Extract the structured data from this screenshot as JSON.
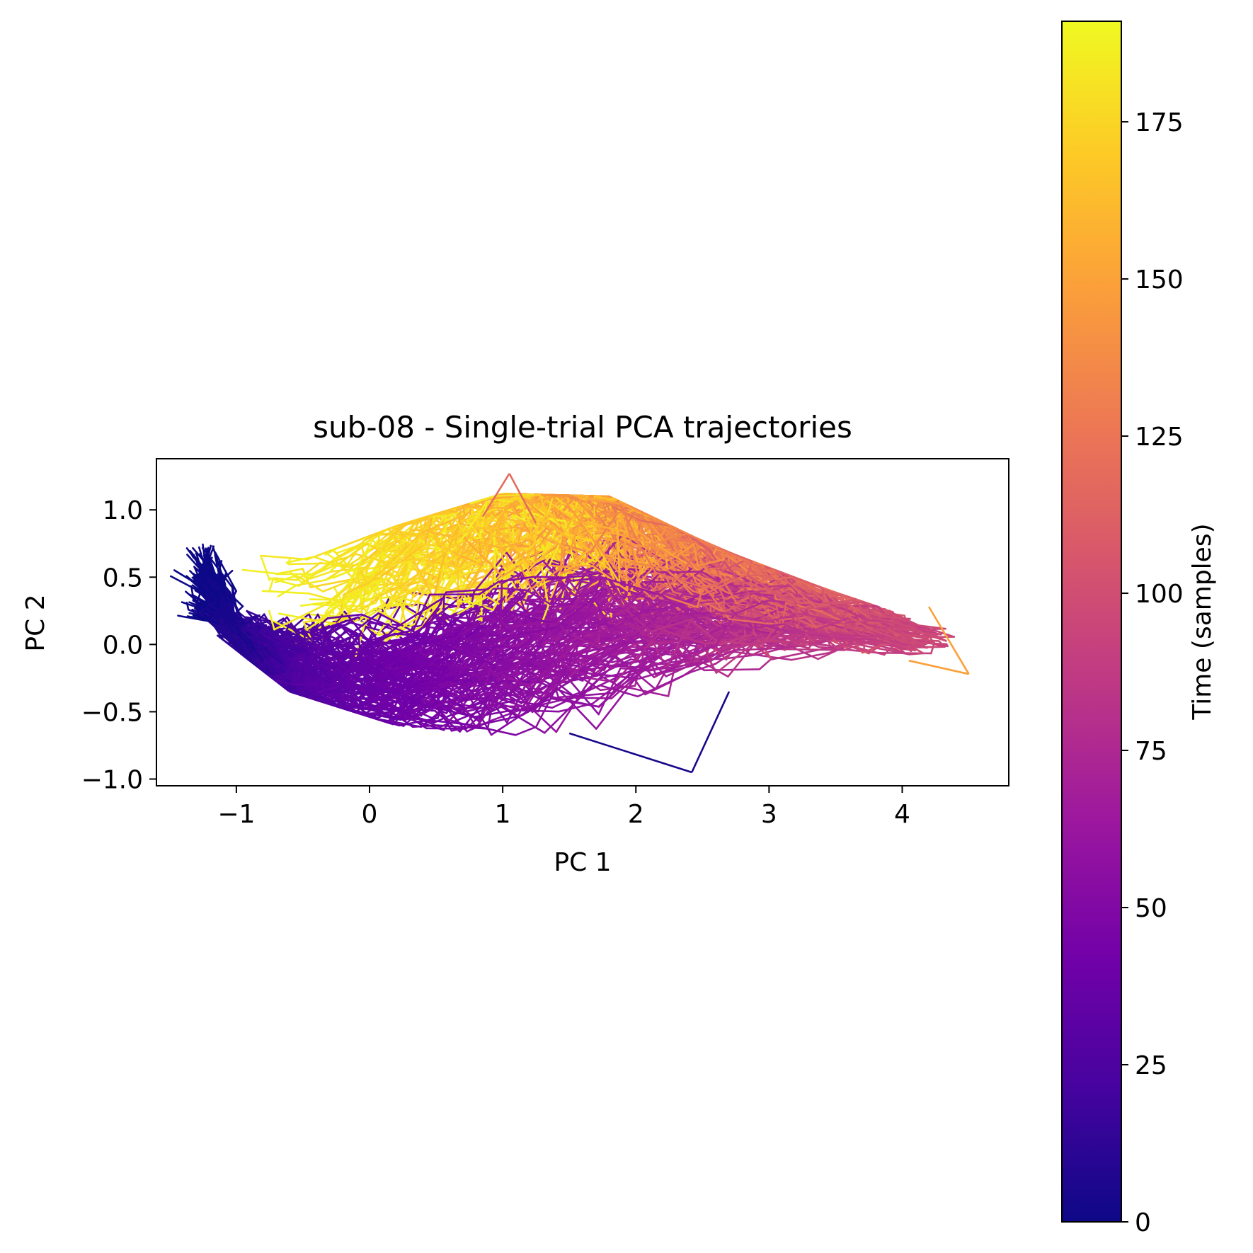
{
  "chart_data": {
    "type": "line",
    "title": "sub-08 - Single-trial PCA trajectories",
    "xlabel": "PC 1",
    "ylabel": "PC 2",
    "xlim": [
      -1.6,
      4.8
    ],
    "ylim": [
      -1.05,
      1.38
    ],
    "xticks": [
      -1,
      0,
      1,
      2,
      3,
      4
    ],
    "xtick_labels": [
      "−1",
      "0",
      "1",
      "2",
      "3",
      "4"
    ],
    "yticks": [
      1.0,
      0.5,
      0.0,
      -0.5,
      -1.0
    ],
    "ytick_labels": [
      "1.0",
      "0.5",
      "0.0",
      "−0.5",
      "−1.0"
    ],
    "grid": false,
    "colormap": "plasma",
    "colorbar": {
      "label": "Time (samples)",
      "range": [
        0,
        191
      ],
      "ticks": [
        0,
        25,
        50,
        75,
        100,
        125,
        150,
        175
      ],
      "tick_labels": [
        "0",
        "25",
        "50",
        "75",
        "100",
        "125",
        "150",
        "175"
      ]
    },
    "colormap_stops": [
      "#0d0887",
      "#46039f",
      "#7201a8",
      "#9c179e",
      "#bd3786",
      "#d8576b",
      "#ed7953",
      "#fb9f3a",
      "#fdca26",
      "#f0f921"
    ],
    "trajectory_envelope": {
      "start_region": {
        "x": [
          -1.3,
          -1.2
        ],
        "y": [
          0.1,
          0.75
        ]
      },
      "lower_path": [
        [
          -1.25,
          0.15
        ],
        [
          -0.6,
          -0.35
        ],
        [
          0.2,
          -0.6
        ],
        [
          1.0,
          -0.68
        ],
        [
          1.8,
          -0.62
        ],
        [
          2.6,
          -0.4
        ],
        [
          3.4,
          -0.25
        ],
        [
          4.3,
          -0.2
        ]
      ],
      "upper_path": [
        [
          -1.25,
          0.72
        ],
        [
          -0.5,
          0.62
        ],
        [
          0.2,
          0.88
        ],
        [
          1.0,
          1.12
        ],
        [
          1.8,
          1.1
        ],
        [
          2.6,
          0.72
        ],
        [
          3.4,
          0.42
        ],
        [
          4.3,
          0.12
        ]
      ],
      "peak_point": [
        1.05,
        1.27
      ],
      "right_tip": [
        4.5,
        -0.22
      ],
      "outlier_point": [
        2.42,
        -0.95
      ]
    }
  }
}
